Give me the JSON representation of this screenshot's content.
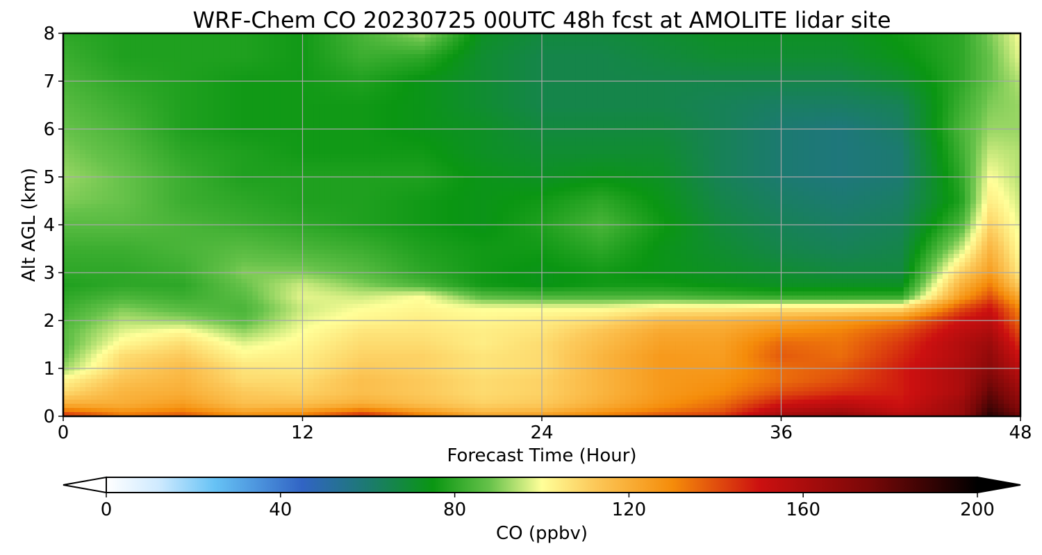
{
  "chart_data": {
    "type": "heatmap",
    "title": "WRF-Chem CO  20230725 00UTC 48h fcst at AMOLITE lidar site",
    "xlabel": "Forecast Time (Hour)",
    "ylabel": "Alt AGL (km)",
    "xlim": [
      0,
      48
    ],
    "ylim": [
      0,
      8
    ],
    "xticks": [
      "0",
      "12",
      "24",
      "36",
      "48"
    ],
    "yticks": [
      "0",
      "1",
      "2",
      "3",
      "4",
      "5",
      "6",
      "7",
      "8"
    ],
    "grid": true,
    "colorbar": {
      "label": "CO  (ppbv)",
      "range": [
        0,
        200
      ],
      "extend": "both",
      "ticks": [
        "0",
        "40",
        "80",
        "120",
        "160",
        "200"
      ],
      "stops": [
        {
          "v": 0,
          "color": "#ffffff"
        },
        {
          "v": 12,
          "color": "#cfeaff"
        },
        {
          "v": 25,
          "color": "#66c2f5"
        },
        {
          "v": 45,
          "color": "#3164c4"
        },
        {
          "v": 60,
          "color": "#1c7a70"
        },
        {
          "v": 75,
          "color": "#0a9612"
        },
        {
          "v": 88,
          "color": "#66c24a"
        },
        {
          "v": 100,
          "color": "#ffff99"
        },
        {
          "v": 112,
          "color": "#fcc95a"
        },
        {
          "v": 130,
          "color": "#f58c0a"
        },
        {
          "v": 150,
          "color": "#cc1010"
        },
        {
          "v": 175,
          "color": "#7a0808"
        },
        {
          "v": 200,
          "color": "#000000"
        }
      ]
    },
    "times": [
      0,
      3,
      6,
      9,
      12,
      15,
      18,
      21,
      24,
      27,
      30,
      33,
      36,
      39,
      42,
      45,
      46.5,
      48
    ],
    "altitudes": [
      0,
      0.05,
      0.25,
      0.5,
      0.75,
      1.0,
      1.25,
      1.5,
      1.75,
      2.0,
      2.25,
      2.5,
      2.75,
      3.0,
      3.5,
      4.0,
      4.5,
      5.0,
      5.5,
      6.0,
      6.5,
      7.0,
      7.5,
      8.0
    ],
    "values": [
      [
        150,
        140,
        145,
        135,
        140,
        155,
        140,
        130,
        135,
        140,
        150,
        150,
        160,
        165,
        160,
        170,
        195,
        180
      ],
      [
        140,
        130,
        135,
        125,
        128,
        140,
        128,
        118,
        120,
        128,
        135,
        140,
        160,
        165,
        155,
        165,
        190,
        175
      ],
      [
        120,
        120,
        125,
        115,
        115,
        120,
        115,
        110,
        112,
        120,
        128,
        135,
        150,
        155,
        150,
        165,
        185,
        170
      ],
      [
        108,
        118,
        120,
        112,
        110,
        115,
        112,
        108,
        110,
        118,
        126,
        130,
        140,
        145,
        148,
        160,
        180,
        165
      ],
      [
        102,
        114,
        118,
        108,
        108,
        115,
        112,
        108,
        110,
        118,
        126,
        128,
        135,
        140,
        148,
        160,
        175,
        160
      ],
      [
        92,
        110,
        116,
        106,
        105,
        112,
        110,
        106,
        108,
        118,
        126,
        126,
        135,
        138,
        148,
        160,
        170,
        155
      ],
      [
        88,
        108,
        112,
        102,
        104,
        110,
        110,
        106,
        108,
        118,
        126,
        125,
        138,
        135,
        146,
        158,
        168,
        150
      ],
      [
        86,
        102,
        108,
        98,
        102,
        108,
        108,
        104,
        108,
        116,
        124,
        124,
        136,
        134,
        144,
        158,
        165,
        145
      ],
      [
        86,
        98,
        102,
        92,
        100,
        106,
        106,
        104,
        106,
        114,
        122,
        122,
        130,
        132,
        140,
        155,
        160,
        140
      ],
      [
        84,
        94,
        92,
        86,
        98,
        102,
        104,
        102,
        104,
        108,
        116,
        118,
        122,
        126,
        132,
        150,
        155,
        135
      ],
      [
        82,
        90,
        86,
        84,
        96,
        100,
        102,
        100,
        100,
        100,
        104,
        104,
        106,
        106,
        108,
        140,
        150,
        130
      ],
      [
        80,
        84,
        82,
        86,
        98,
        96,
        100,
        86,
        84,
        84,
        84,
        82,
        80,
        80,
        80,
        125,
        140,
        120
      ],
      [
        78,
        80,
        80,
        88,
        96,
        90,
        84,
        76,
        74,
        76,
        76,
        74,
        72,
        72,
        72,
        118,
        132,
        110
      ],
      [
        80,
        80,
        82,
        90,
        90,
        86,
        80,
        76,
        74,
        76,
        74,
        72,
        70,
        68,
        68,
        110,
        125,
        104
      ],
      [
        82,
        82,
        84,
        86,
        84,
        82,
        78,
        76,
        76,
        80,
        74,
        70,
        66,
        64,
        66,
        95,
        118,
        100
      ],
      [
        86,
        86,
        84,
        82,
        80,
        78,
        76,
        74,
        78,
        84,
        76,
        68,
        64,
        62,
        64,
        84,
        110,
        98
      ],
      [
        90,
        88,
        82,
        80,
        78,
        78,
        76,
        74,
        76,
        80,
        74,
        66,
        62,
        60,
        62,
        78,
        104,
        96
      ],
      [
        92,
        88,
        82,
        78,
        78,
        78,
        78,
        74,
        72,
        74,
        72,
        64,
        60,
        58,
        60,
        80,
        100,
        94
      ],
      [
        90,
        86,
        80,
        78,
        76,
        76,
        76,
        72,
        70,
        70,
        70,
        64,
        60,
        58,
        60,
        82,
        96,
        94
      ],
      [
        88,
        84,
        78,
        76,
        76,
        76,
        74,
        72,
        68,
        68,
        68,
        64,
        60,
        58,
        62,
        84,
        92,
        92
      ],
      [
        86,
        82,
        78,
        76,
        76,
        76,
        74,
        70,
        66,
        66,
        66,
        64,
        62,
        62,
        64,
        82,
        90,
        92
      ],
      [
        84,
        80,
        78,
        76,
        76,
        78,
        74,
        70,
        66,
        66,
        66,
        66,
        66,
        66,
        70,
        80,
        88,
        94
      ],
      [
        82,
        78,
        78,
        78,
        76,
        82,
        80,
        70,
        66,
        66,
        68,
        70,
        70,
        70,
        74,
        80,
        88,
        98
      ],
      [
        80,
        78,
        78,
        78,
        76,
        84,
        92,
        72,
        68,
        68,
        70,
        72,
        72,
        72,
        76,
        80,
        90,
        100
      ]
    ]
  }
}
